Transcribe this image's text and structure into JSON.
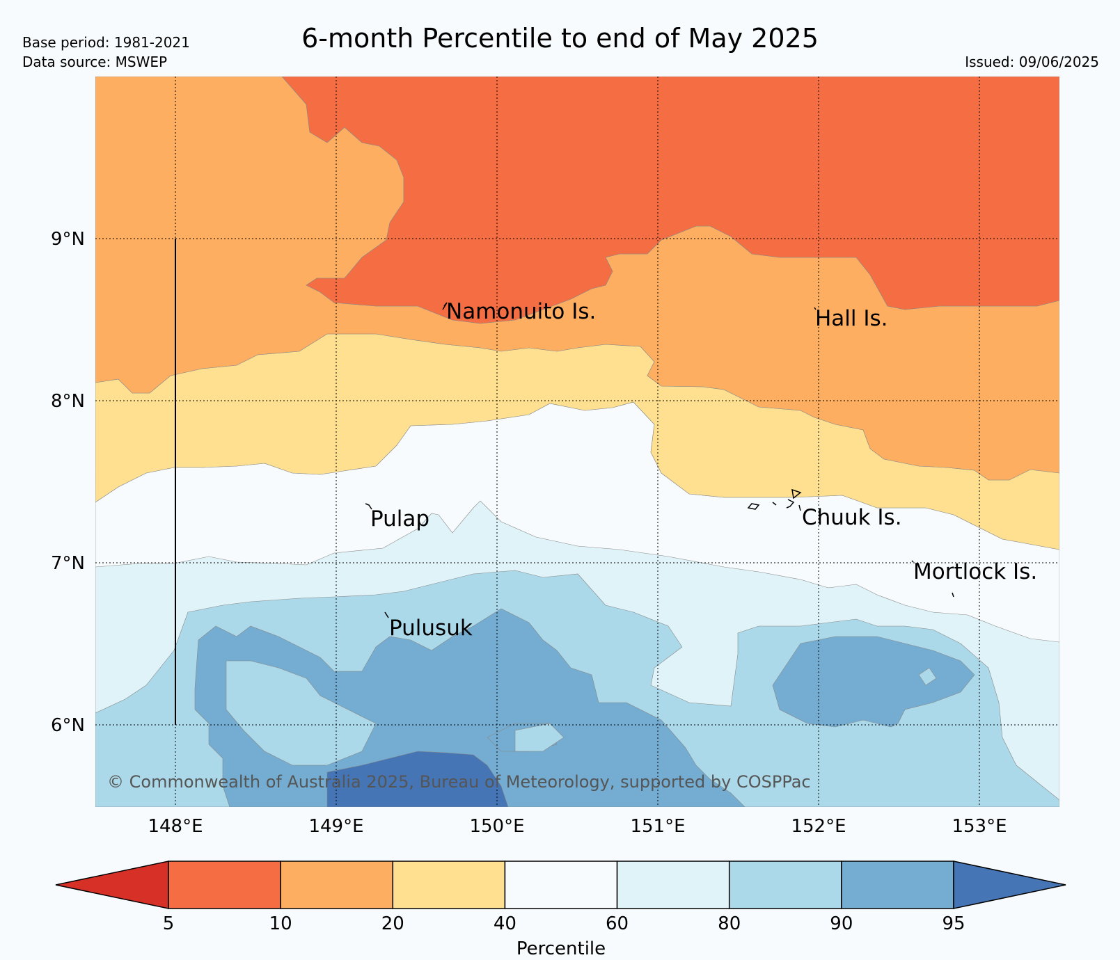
{
  "header": {
    "base_period": "Base period: 1981-2021",
    "data_source": "Data source: MSWEP",
    "title": "6-month Percentile to end of May 2025",
    "issued": "Issued: 09/06/2025"
  },
  "map": {
    "lat_labels": [
      "9°N",
      "8°N",
      "7°N",
      "6°N"
    ],
    "lon_labels": [
      "148°E",
      "149°E",
      "150°E",
      "151°E",
      "152°E",
      "153°E"
    ],
    "places": {
      "namonuito": "Namonuito Is.",
      "hall": "Hall Is.",
      "pulap": "Pulap",
      "chuuk": "Chuuk Is.",
      "mortlock": "Mortlock Is.",
      "pulusuk": "Pulusuk"
    },
    "copyright": "© Commonwealth of Australia 2025, Bureau of Meteorology, supported by COSPPac"
  },
  "colorbar": {
    "label": "Percentile",
    "ticks": [
      "5",
      "10",
      "20",
      "40",
      "60",
      "80",
      "90",
      "95"
    ],
    "colors": {
      "below_5": "#d73027",
      "p5_10": "#f46d43",
      "p10_20": "#fdae61",
      "p20_40": "#fee090",
      "p40_60": "#f7fbfd",
      "p60_80": "#e0f3f8",
      "p80_90": "#abd9e9",
      "p90_95": "#74add1",
      "above_95": "#4575b4"
    }
  }
}
